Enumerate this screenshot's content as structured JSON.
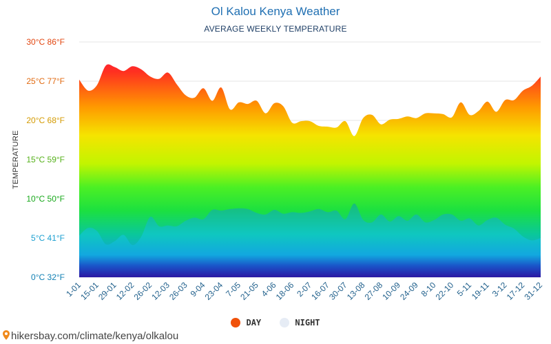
{
  "header": {
    "title": "Ol Kalou Kenya Weather",
    "subtitle": "AVERAGE WEEKLY TEMPERATURE"
  },
  "source": {
    "text": "hikersbay.com/climate/kenya/olkalou",
    "icon": "map-pin-icon"
  },
  "legend": {
    "day_label": "DAY",
    "night_label": "NIGHT",
    "day_color": "#f0510a",
    "night_color": "#e6ecf5"
  },
  "chart_data": {
    "type": "area",
    "title": "Ol Kalou Kenya Weather",
    "subtitle": "AVERAGE WEEKLY TEMPERATURE",
    "ylabel": "TEMPERATURE",
    "xlabel": "",
    "ylim": [
      0,
      30
    ],
    "grid": true,
    "legend_position": "bottom",
    "y_ticks": [
      "0°C 32°F",
      "5°C 41°F",
      "10°C 50°F",
      "15°C 59°F",
      "20°C 68°F",
      "25°C 77°F",
      "30°C 86°F"
    ],
    "y_tick_colors": [
      "#0f7fb3",
      "#1a9fd0",
      "#17a81a",
      "#55b11a",
      "#d49a00",
      "#e16a10",
      "#e2450f"
    ],
    "x_tick_labels": [
      "1-01",
      "15-01",
      "29-01",
      "12-02",
      "26-02",
      "12-03",
      "26-03",
      "9-04",
      "23-04",
      "7-05",
      "21-05",
      "4-06",
      "18-06",
      "2-07",
      "16-07",
      "30-07",
      "13-08",
      "27-08",
      "10-09",
      "24-09",
      "8-10",
      "22-10",
      "5-11",
      "19-11",
      "3-12",
      "17-12",
      "31-12"
    ],
    "x": [
      "1-01",
      "8-01",
      "15-01",
      "22-01",
      "29-01",
      "5-02",
      "12-02",
      "19-02",
      "26-02",
      "5-03",
      "12-03",
      "19-03",
      "26-03",
      "2-04",
      "9-04",
      "16-04",
      "23-04",
      "30-04",
      "7-05",
      "14-05",
      "21-05",
      "28-05",
      "4-06",
      "11-06",
      "18-06",
      "25-06",
      "2-07",
      "9-07",
      "16-07",
      "23-07",
      "30-07",
      "6-08",
      "13-08",
      "20-08",
      "27-08",
      "3-09",
      "10-09",
      "17-09",
      "24-09",
      "1-10",
      "8-10",
      "15-10",
      "22-10",
      "29-10",
      "5-11",
      "12-11",
      "19-11",
      "26-11",
      "3-12",
      "10-12",
      "17-12",
      "24-12",
      "31-12"
    ],
    "series": [
      {
        "name": "DAY",
        "values": [
          25.2,
          23.8,
          24.5,
          27.0,
          26.8,
          26.3,
          26.9,
          26.5,
          25.6,
          25.3,
          26.1,
          24.6,
          23.2,
          22.9,
          24.1,
          22.5,
          24.2,
          21.4,
          22.3,
          22.1,
          22.5,
          20.9,
          22.2,
          21.8,
          19.7,
          19.9,
          19.9,
          19.3,
          19.2,
          19.1,
          19.9,
          18.0,
          20.3,
          20.7,
          19.5,
          20.1,
          20.2,
          20.5,
          20.3,
          20.9,
          20.9,
          20.8,
          20.4,
          22.3,
          20.7,
          21.2,
          22.4,
          21.1,
          22.6,
          22.6,
          23.8,
          24.4,
          25.6
        ]
      },
      {
        "name": "NIGHT",
        "values": [
          5.3,
          6.3,
          5.9,
          4.2,
          4.6,
          5.4,
          4.1,
          5.2,
          7.7,
          6.5,
          6.6,
          6.5,
          7.2,
          7.6,
          7.4,
          8.6,
          8.5,
          8.7,
          8.8,
          8.7,
          8.2,
          8.0,
          8.6,
          8.1,
          8.3,
          8.2,
          8.4,
          8.7,
          8.3,
          8.5,
          7.4,
          9.4,
          7.3,
          7.0,
          8.0,
          7.1,
          7.8,
          7.2,
          8.0,
          7.0,
          7.3,
          8.0,
          8.0,
          7.2,
          7.5,
          6.6,
          7.3,
          7.6,
          6.7,
          6.2,
          5.2,
          4.7,
          5.0
        ]
      }
    ]
  }
}
